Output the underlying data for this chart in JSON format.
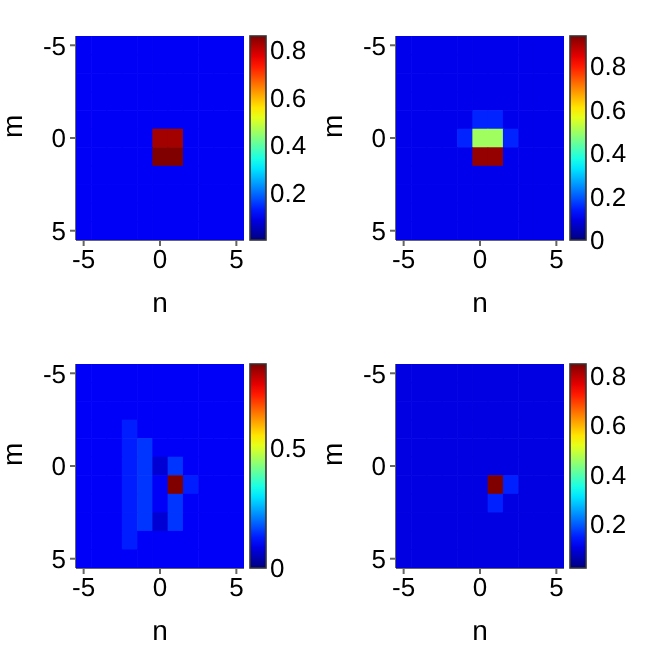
{
  "chart_data": [
    {
      "type": "heatmap",
      "xlabel": "n",
      "ylabel": "m",
      "categories": [
        "-5",
        null,
        null,
        null,
        null,
        "0",
        null,
        null,
        null,
        null,
        "5"
      ],
      "y_categories": [
        "-5",
        null,
        null,
        null,
        null,
        "0",
        null,
        null,
        null,
        null,
        "5"
      ],
      "clim": [
        0,
        0.86
      ],
      "cticks": [
        0.2,
        0.4,
        0.6,
        0.8
      ],
      "cells": [
        [
          0.1,
          0.1,
          0.1,
          0.1,
          0.1,
          0.1,
          0.1,
          0.1,
          0.1,
          0.1,
          0.1
        ],
        [
          0.1,
          0.1,
          0.1,
          0.1,
          0.1,
          0.1,
          0.1,
          0.1,
          0.1,
          0.1,
          0.1
        ],
        [
          0.1,
          0.1,
          0.1,
          0.1,
          0.1,
          0.1,
          0.1,
          0.1,
          0.1,
          0.1,
          0.1
        ],
        [
          0.1,
          0.1,
          0.1,
          0.1,
          0.1,
          0.1,
          0.1,
          0.1,
          0.1,
          0.1,
          0.1
        ],
        [
          0.1,
          0.1,
          0.1,
          0.1,
          0.1,
          0.1,
          0.1,
          0.1,
          0.1,
          0.1,
          0.1
        ],
        [
          0.1,
          0.1,
          0.1,
          0.1,
          0.1,
          0.83,
          0.83,
          0.1,
          0.1,
          0.1,
          0.1
        ],
        [
          0.1,
          0.1,
          0.1,
          0.1,
          0.1,
          0.86,
          0.86,
          0.1,
          0.1,
          0.1,
          0.1
        ],
        [
          0.1,
          0.1,
          0.1,
          0.1,
          0.1,
          0.1,
          0.1,
          0.1,
          0.1,
          0.1,
          0.1
        ],
        [
          0.1,
          0.1,
          0.1,
          0.1,
          0.1,
          0.1,
          0.1,
          0.1,
          0.1,
          0.1,
          0.1
        ],
        [
          0.1,
          0.1,
          0.1,
          0.1,
          0.1,
          0.1,
          0.1,
          0.1,
          0.1,
          0.1,
          0.1
        ],
        [
          0.1,
          0.1,
          0.1,
          0.1,
          0.1,
          0.1,
          0.1,
          0.1,
          0.1,
          0.1,
          0.1
        ]
      ]
    },
    {
      "type": "heatmap",
      "xlabel": "n",
      "ylabel": "m",
      "categories": [
        "-5",
        null,
        null,
        null,
        null,
        "0",
        null,
        null,
        null,
        null,
        "5"
      ],
      "y_categories": [
        "-5",
        null,
        null,
        null,
        null,
        "0",
        null,
        null,
        null,
        null,
        "5"
      ],
      "clim": [
        0,
        0.94
      ],
      "cticks": [
        0,
        0.2,
        0.4,
        0.6,
        0.8
      ],
      "cells": [
        [
          0.1,
          0.1,
          0.1,
          0.1,
          0.1,
          0.1,
          0.1,
          0.1,
          0.1,
          0.1,
          0.1
        ],
        [
          0.1,
          0.1,
          0.1,
          0.1,
          0.1,
          0.1,
          0.1,
          0.1,
          0.1,
          0.1,
          0.1
        ],
        [
          0.1,
          0.1,
          0.1,
          0.1,
          0.1,
          0.1,
          0.1,
          0.1,
          0.1,
          0.1,
          0.1
        ],
        [
          0.1,
          0.1,
          0.1,
          0.1,
          0.1,
          0.1,
          0.1,
          0.1,
          0.1,
          0.1,
          0.1
        ],
        [
          0.1,
          0.1,
          0.1,
          0.1,
          0.1,
          0.15,
          0.15,
          0.1,
          0.1,
          0.1,
          0.1
        ],
        [
          0.1,
          0.1,
          0.1,
          0.1,
          0.15,
          0.5,
          0.5,
          0.15,
          0.1,
          0.1,
          0.1
        ],
        [
          0.1,
          0.1,
          0.1,
          0.1,
          0.1,
          0.92,
          0.92,
          0.1,
          0.1,
          0.1,
          0.1
        ],
        [
          0.1,
          0.1,
          0.1,
          0.1,
          0.1,
          0.1,
          0.1,
          0.1,
          0.1,
          0.1,
          0.1
        ],
        [
          0.1,
          0.1,
          0.1,
          0.1,
          0.1,
          0.1,
          0.1,
          0.1,
          0.1,
          0.1,
          0.1
        ],
        [
          0.1,
          0.1,
          0.1,
          0.1,
          0.1,
          0.1,
          0.1,
          0.1,
          0.1,
          0.1,
          0.1
        ],
        [
          0.1,
          0.1,
          0.1,
          0.1,
          0.1,
          0.1,
          0.1,
          0.1,
          0.1,
          0.1,
          0.1
        ]
      ]
    },
    {
      "type": "heatmap",
      "xlabel": "n",
      "ylabel": "m",
      "categories": [
        "-5",
        null,
        null,
        null,
        null,
        "0",
        null,
        null,
        null,
        null,
        "5"
      ],
      "y_categories": [
        "-5",
        null,
        null,
        null,
        null,
        "0",
        null,
        null,
        null,
        null,
        "5"
      ],
      "clim": [
        0,
        0.85
      ],
      "cticks": [
        0,
        0.5
      ],
      "cells": [
        [
          0.1,
          0.1,
          0.1,
          0.1,
          0.1,
          0.1,
          0.1,
          0.1,
          0.1,
          0.1,
          0.1
        ],
        [
          0.1,
          0.1,
          0.1,
          0.1,
          0.1,
          0.1,
          0.1,
          0.1,
          0.1,
          0.1,
          0.1
        ],
        [
          0.1,
          0.1,
          0.1,
          0.1,
          0.1,
          0.1,
          0.1,
          0.1,
          0.1,
          0.1,
          0.1
        ],
        [
          0.1,
          0.1,
          0.1,
          0.13,
          0.1,
          0.1,
          0.1,
          0.1,
          0.1,
          0.1,
          0.1
        ],
        [
          0.1,
          0.1,
          0.1,
          0.13,
          0.15,
          0.1,
          0.1,
          0.1,
          0.1,
          0.1,
          0.1
        ],
        [
          0.1,
          0.1,
          0.1,
          0.13,
          0.15,
          0.07,
          0.15,
          0.1,
          0.1,
          0.1,
          0.1
        ],
        [
          0.1,
          0.1,
          0.1,
          0.13,
          0.15,
          0.1,
          0.85,
          0.13,
          0.1,
          0.1,
          0.1
        ],
        [
          0.1,
          0.1,
          0.1,
          0.13,
          0.15,
          0.1,
          0.15,
          0.1,
          0.1,
          0.1,
          0.1
        ],
        [
          0.1,
          0.1,
          0.1,
          0.13,
          0.15,
          0.07,
          0.15,
          0.1,
          0.1,
          0.1,
          0.1
        ],
        [
          0.1,
          0.1,
          0.1,
          0.13,
          0.1,
          0.1,
          0.1,
          0.1,
          0.1,
          0.1,
          0.1
        ],
        [
          0.1,
          0.1,
          0.1,
          0.1,
          0.1,
          0.1,
          0.1,
          0.1,
          0.1,
          0.1,
          0.1
        ]
      ]
    },
    {
      "type": "heatmap",
      "xlabel": "n",
      "ylabel": "m",
      "categories": [
        "-5",
        null,
        null,
        null,
        null,
        "0",
        null,
        null,
        null,
        null,
        "5"
      ],
      "y_categories": [
        "-5",
        null,
        null,
        null,
        null,
        "0",
        null,
        null,
        null,
        null,
        "5"
      ],
      "clim": [
        0.02,
        0.85
      ],
      "cticks": [
        0.2,
        0.4,
        0.6,
        0.8
      ],
      "cells": [
        [
          0.1,
          0.1,
          0.1,
          0.1,
          0.1,
          0.1,
          0.1,
          0.1,
          0.1,
          0.1,
          0.1
        ],
        [
          0.1,
          0.1,
          0.1,
          0.1,
          0.1,
          0.1,
          0.1,
          0.1,
          0.1,
          0.1,
          0.1
        ],
        [
          0.1,
          0.1,
          0.1,
          0.1,
          0.1,
          0.1,
          0.1,
          0.1,
          0.1,
          0.1,
          0.1
        ],
        [
          0.1,
          0.1,
          0.1,
          0.1,
          0.1,
          0.1,
          0.1,
          0.1,
          0.1,
          0.1,
          0.1
        ],
        [
          0.1,
          0.1,
          0.1,
          0.1,
          0.1,
          0.1,
          0.1,
          0.1,
          0.1,
          0.1,
          0.1
        ],
        [
          0.1,
          0.1,
          0.1,
          0.1,
          0.1,
          0.1,
          0.1,
          0.1,
          0.1,
          0.1,
          0.1
        ],
        [
          0.1,
          0.1,
          0.1,
          0.1,
          0.1,
          0.1,
          0.85,
          0.15,
          0.1,
          0.1,
          0.1
        ],
        [
          0.1,
          0.1,
          0.1,
          0.1,
          0.1,
          0.1,
          0.15,
          0.1,
          0.1,
          0.1,
          0.1
        ],
        [
          0.1,
          0.1,
          0.1,
          0.1,
          0.1,
          0.1,
          0.1,
          0.1,
          0.1,
          0.1,
          0.1
        ],
        [
          0.1,
          0.1,
          0.1,
          0.1,
          0.1,
          0.1,
          0.1,
          0.1,
          0.1,
          0.1,
          0.1
        ],
        [
          0.1,
          0.1,
          0.1,
          0.1,
          0.1,
          0.1,
          0.1,
          0.1,
          0.1,
          0.1,
          0.1
        ]
      ]
    }
  ]
}
